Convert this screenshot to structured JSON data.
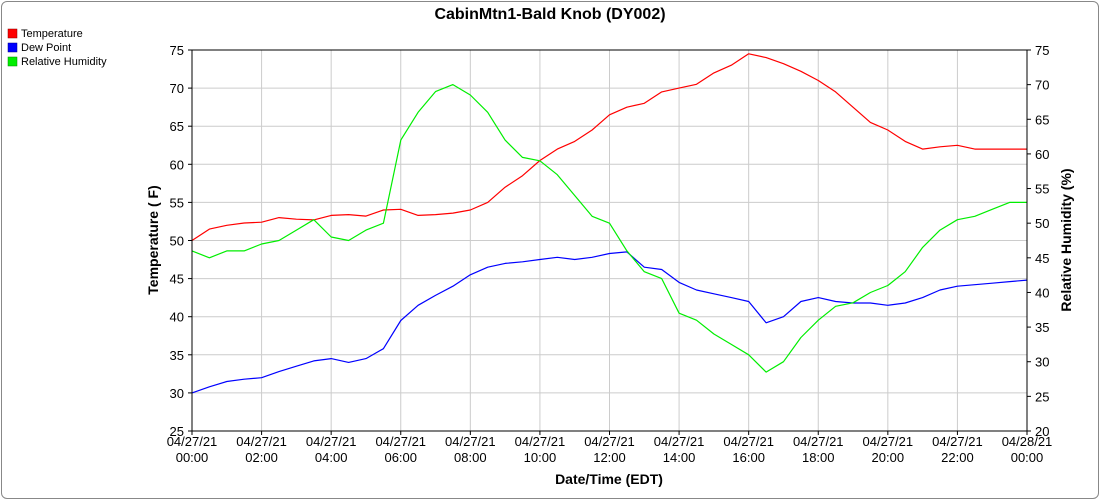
{
  "chart_data": {
    "type": "line",
    "title": "CabinMtn1-Bald Knob (DY002)",
    "xlabel": "Date/Time (EDT)",
    "ylabel": "Temperature ( F)",
    "y2label": "Relative Humidity (%)",
    "ylim": [
      25,
      75
    ],
    "y2lim": [
      20,
      75
    ],
    "xlim": [
      0,
      24
    ],
    "grid": true,
    "legend_position": "top-left",
    "y_ticks": [
      "25",
      "30",
      "35",
      "40",
      "45",
      "50",
      "55",
      "60",
      "65",
      "70",
      "75"
    ],
    "y2_ticks": [
      "20",
      "25",
      "30",
      "35",
      "40",
      "45",
      "50",
      "55",
      "60",
      "65",
      "70",
      "75"
    ],
    "x_ticks": [
      {
        "date": "04/27/21",
        "time": "00:00"
      },
      {
        "date": "04/27/21",
        "time": "02:00"
      },
      {
        "date": "04/27/21",
        "time": "04:00"
      },
      {
        "date": "04/27/21",
        "time": "06:00"
      },
      {
        "date": "04/27/21",
        "time": "08:00"
      },
      {
        "date": "04/27/21",
        "time": "10:00"
      },
      {
        "date": "04/27/21",
        "time": "12:00"
      },
      {
        "date": "04/27/21",
        "time": "14:00"
      },
      {
        "date": "04/27/21",
        "time": "16:00"
      },
      {
        "date": "04/27/21",
        "time": "18:00"
      },
      {
        "date": "04/27/21",
        "time": "20:00"
      },
      {
        "date": "04/27/21",
        "time": "22:00"
      },
      {
        "date": "04/28/21",
        "time": "00:00"
      }
    ],
    "series": [
      {
        "name": "Temperature",
        "color": "#ff0000",
        "axis": "left",
        "x": [
          0,
          0.5,
          1,
          1.5,
          2,
          2.5,
          3,
          3.5,
          4,
          4.5,
          5,
          5.5,
          6,
          6.5,
          7,
          7.5,
          8,
          8.5,
          9,
          9.5,
          10,
          10.5,
          11,
          11.5,
          12,
          12.5,
          13,
          13.5,
          14,
          14.5,
          15,
          15.5,
          16,
          16.5,
          17,
          17.5,
          18,
          18.5,
          19,
          19.5,
          20,
          20.5,
          21,
          21.5,
          22,
          22.5,
          23,
          23.5,
          24
        ],
        "values": [
          50,
          51.5,
          52,
          52.3,
          52.4,
          53,
          52.8,
          52.7,
          53.3,
          53.4,
          53.2,
          54,
          54.1,
          53.3,
          53.4,
          53.6,
          54,
          55,
          57,
          58.5,
          60.5,
          62,
          63,
          64.5,
          66.5,
          67.5,
          68,
          69.5,
          70,
          70.5,
          72,
          73,
          74.5,
          74,
          73.2,
          72.2,
          71,
          69.5,
          67.5,
          65.5,
          64.5,
          63,
          62,
          62.3,
          62.5,
          62,
          62,
          62,
          62
        ]
      },
      {
        "name": "Dew Point",
        "color": "#0000ff",
        "axis": "left",
        "x": [
          0,
          0.5,
          1,
          1.5,
          2,
          2.5,
          3,
          3.5,
          4,
          4.5,
          5,
          5.5,
          6,
          6.5,
          7,
          7.5,
          8,
          8.5,
          9,
          9.5,
          10,
          10.5,
          11,
          11.5,
          12,
          12.5,
          13,
          13.5,
          14,
          14.5,
          15,
          15.5,
          16,
          16.5,
          17,
          17.5,
          18,
          18.5,
          19,
          19.5,
          20,
          20.5,
          21,
          21.5,
          22,
          22.5,
          23,
          23.5,
          24
        ],
        "values": [
          30,
          30.8,
          31.5,
          31.8,
          32,
          32.8,
          33.5,
          34.2,
          34.5,
          34,
          34.5,
          35.8,
          39.5,
          41.5,
          42.8,
          44,
          45.5,
          46.5,
          47,
          47.2,
          47.5,
          47.8,
          47.5,
          47.8,
          48.3,
          48.5,
          46.5,
          46.2,
          44.5,
          43.5,
          43,
          42.5,
          42,
          39.2,
          40,
          42,
          42.5,
          42,
          41.8,
          41.8,
          41.5,
          41.8,
          42.5,
          43.5,
          44,
          44.2,
          44.4,
          44.6,
          44.8
        ]
      },
      {
        "name": "Relative Humidity",
        "color": "#00ee00",
        "axis": "right",
        "x": [
          0,
          0.5,
          1,
          1.5,
          2,
          2.5,
          3,
          3.5,
          4,
          4.5,
          5,
          5.5,
          6,
          6.5,
          7,
          7.5,
          8,
          8.5,
          9,
          9.5,
          10,
          10.5,
          11,
          11.5,
          12,
          12.5,
          13,
          13.5,
          14,
          14.5,
          15,
          15.5,
          16,
          16.5,
          17,
          17.5,
          18,
          18.5,
          19,
          19.5,
          20,
          20.5,
          21,
          21.5,
          22,
          22.5,
          23,
          23.5,
          24
        ],
        "values": [
          46,
          45,
          46,
          46,
          47,
          47.5,
          49,
          50.5,
          48,
          47.5,
          49,
          50,
          62,
          66,
          69,
          70,
          68.5,
          66,
          62,
          59.5,
          59,
          57,
          54,
          51,
          50,
          46,
          43,
          42,
          37,
          36,
          34,
          32.5,
          31,
          28.5,
          30,
          33.5,
          36,
          38,
          38.5,
          40,
          41,
          43,
          46.5,
          49,
          50.5,
          51,
          52,
          53,
          53
        ]
      }
    ]
  }
}
